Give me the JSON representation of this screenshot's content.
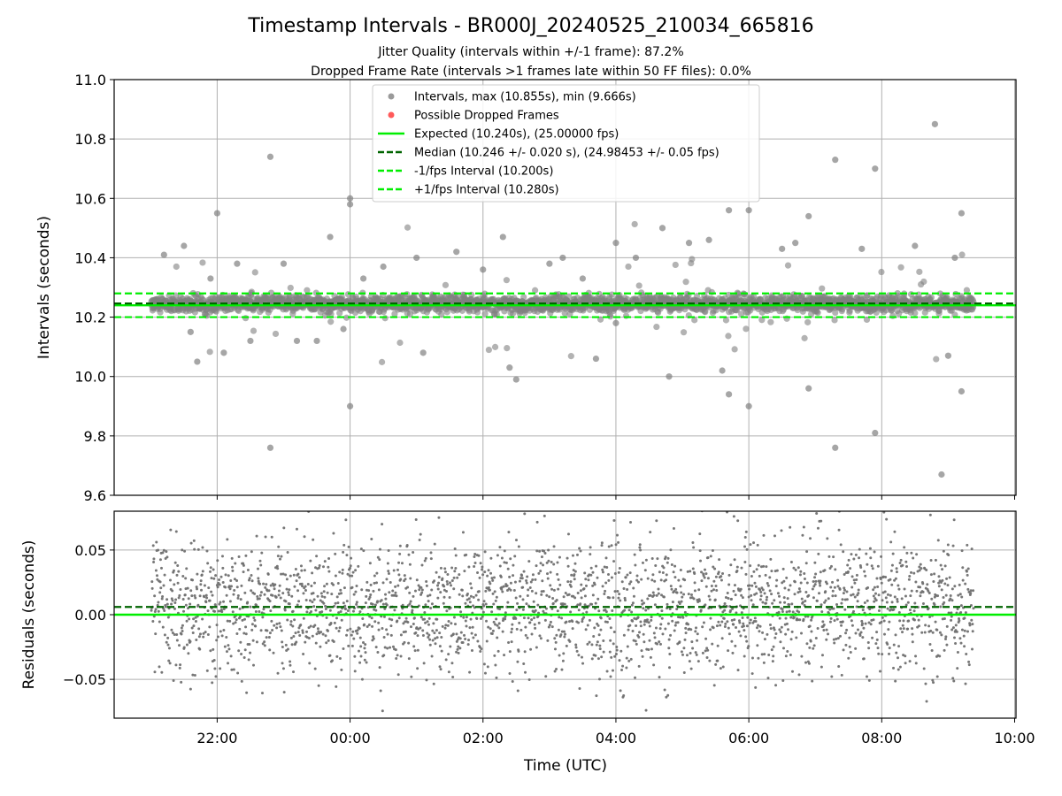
{
  "chart_data": {
    "type": "scatter",
    "title": "Timestamp Intervals - BR000J_20240525_210034_665816",
    "subtitle_lines": [
      "Jitter Quality (intervals within +/-1 frame): 87.2%",
      "Dropped Frame Rate (intervals >1 frames late within 50 FF files): 0.0%"
    ],
    "xlabel": "Time (UTC)",
    "x_ticks": [
      "22:00",
      "00:00",
      "02:00",
      "04:00",
      "06:00",
      "08:00",
      "10:00"
    ],
    "x_tick_hours": [
      22,
      24,
      26,
      28,
      30,
      32,
      34
    ],
    "xlim_hours": [
      20.45,
      34.02
    ],
    "data_span_hours": [
      21.01,
      33.38
    ],
    "grid": true,
    "colors": {
      "intervals": "#808080",
      "dropped": "#ff0000",
      "expected": "#00ee00",
      "median": "#006400",
      "bounds": "#00ee00"
    },
    "panels": [
      {
        "ylabel": "Intervals (seconds)",
        "ylim": [
          9.6,
          11.0
        ],
        "y_ticks": [
          "9.6",
          "9.8",
          "10.0",
          "10.2",
          "10.4",
          "10.6",
          "10.8",
          "11.0"
        ],
        "y_tick_values": [
          9.6,
          9.8,
          10.0,
          10.2,
          10.4,
          10.6,
          10.8,
          11.0
        ],
        "reference_lines": {
          "expected": 10.24,
          "median": 10.246,
          "lower": 10.2,
          "upper": 10.28
        },
        "center": 10.245,
        "spread": 0.025,
        "point_count": 2600,
        "outliers": [
          [
            21.2,
            10.41
          ],
          [
            21.5,
            10.44
          ],
          [
            21.6,
            10.15
          ],
          [
            21.7,
            10.05
          ],
          [
            21.9,
            10.33
          ],
          [
            22.0,
            10.55
          ],
          [
            22.1,
            10.08
          ],
          [
            22.3,
            10.38
          ],
          [
            22.5,
            10.12
          ],
          [
            22.8,
            10.74
          ],
          [
            22.8,
            9.76
          ],
          [
            23.0,
            10.38
          ],
          [
            23.2,
            10.12
          ],
          [
            23.5,
            10.12
          ],
          [
            23.7,
            10.47
          ],
          [
            23.9,
            10.16
          ],
          [
            24.0,
            10.6
          ],
          [
            24.0,
            10.58
          ],
          [
            24.0,
            9.9
          ],
          [
            24.2,
            10.33
          ],
          [
            24.5,
            10.37
          ],
          [
            25.1,
            10.08
          ],
          [
            25.6,
            10.42
          ],
          [
            26.0,
            10.36
          ],
          [
            26.3,
            10.47
          ],
          [
            26.4,
            10.03
          ],
          [
            26.5,
            9.99
          ],
          [
            27.0,
            10.38
          ],
          [
            27.2,
            10.4
          ],
          [
            27.5,
            10.33
          ],
          [
            27.7,
            10.06
          ],
          [
            28.0,
            10.45
          ],
          [
            28.3,
            10.4
          ],
          [
            28.7,
            10.5
          ],
          [
            28.8,
            10.0
          ],
          [
            29.1,
            10.45
          ],
          [
            29.4,
            10.46
          ],
          [
            29.6,
            10.02
          ],
          [
            29.7,
            10.56
          ],
          [
            30.0,
            10.56
          ],
          [
            30.0,
            9.9
          ],
          [
            29.7,
            9.94
          ],
          [
            30.5,
            10.43
          ],
          [
            30.7,
            10.45
          ],
          [
            30.9,
            10.54
          ],
          [
            30.9,
            9.96
          ],
          [
            31.3,
            10.73
          ],
          [
            31.3,
            9.76
          ],
          [
            31.7,
            10.43
          ],
          [
            31.9,
            10.7
          ],
          [
            31.9,
            9.81
          ],
          [
            32.5,
            10.44
          ],
          [
            32.8,
            10.85
          ],
          [
            32.9,
            9.67
          ],
          [
            33.1,
            10.4
          ],
          [
            33.2,
            10.55
          ],
          [
            33.2,
            9.95
          ],
          [
            33.0,
            10.07
          ],
          [
            28.0,
            10.18
          ],
          [
            25.0,
            10.4
          ]
        ]
      },
      {
        "ylabel": "Residuals (seconds)",
        "ylim": [
          -0.08,
          0.08
        ],
        "y_ticks": [
          "−0.05",
          "0.00",
          "0.05"
        ],
        "y_tick_values": [
          -0.05,
          0.0,
          0.05
        ],
        "reference_lines": {
          "expected": 0.0,
          "median": 0.006
        },
        "center": 0.006,
        "spread": 0.026,
        "point_count": 2600
      }
    ],
    "legend": {
      "position": "upper center",
      "entries": [
        {
          "label": "Intervals, max (10.855s), min (9.666s)",
          "marker": "dot",
          "color": "#9a9a9a"
        },
        {
          "label": "Possible Dropped Frames",
          "marker": "dot",
          "color": "#ff5a5a"
        },
        {
          "label": "Expected (10.240s), (25.00000 fps)",
          "marker": "solid",
          "color": "#00ee00"
        },
        {
          "label": "Median (10.246 +/- 0.020 s), (24.98453 +/- 0.05 fps)",
          "marker": "dashed",
          "color": "#006400"
        },
        {
          "label": "-1/fps Interval (10.200s)",
          "marker": "dashed",
          "color": "#00ee00"
        },
        {
          "label": "+1/fps Interval (10.280s)",
          "marker": "dashed",
          "color": "#00ee00"
        }
      ]
    }
  }
}
